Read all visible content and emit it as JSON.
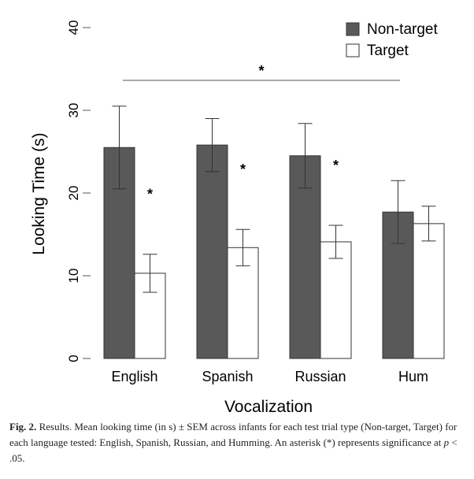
{
  "chart_data": {
    "type": "bar",
    "categories": [
      "English",
      "Spanish",
      "Russian",
      "Hum"
    ],
    "series": [
      {
        "name": "Non-target",
        "values": [
          25.5,
          25.8,
          24.5,
          17.7
        ],
        "sem": [
          5.0,
          3.2,
          3.9,
          3.8
        ],
        "color": "#595959"
      },
      {
        "name": "Target",
        "values": [
          10.3,
          13.4,
          14.1,
          16.3
        ],
        "sem": [
          2.3,
          2.2,
          2.0,
          2.1
        ],
        "color": "#ffffff"
      }
    ],
    "xlabel": "Vocalization",
    "ylabel": "Looking Time (s)",
    "ylim": [
      0,
      40
    ],
    "yticks": [
      0,
      10,
      20,
      30,
      40
    ],
    "grid": false,
    "legend_position": "top-right",
    "significance_marker": "*",
    "within_pair_significance": [
      true,
      true,
      true,
      false
    ],
    "across_group_bracket": {
      "label": "*",
      "from_category": "English",
      "to_category": "Hum"
    }
  },
  "caption": {
    "label": "Fig. 2.",
    "text_before_p": "Results. Mean looking time (in s) ± SEM across infants for each test trial type (Non-target, Target) for each language tested: English, Spanish, Russian, and Humming. An asterisk (*) represents significance at ",
    "p_symbol": "p",
    "text_after_p": " < .05."
  }
}
